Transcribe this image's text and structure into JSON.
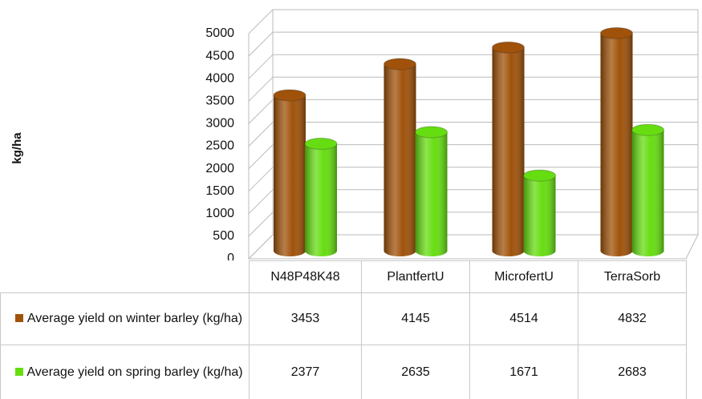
{
  "chart_data": {
    "type": "cylinder-bar",
    "y_label": "kg/ha",
    "categories": [
      "N48P48K48",
      "PlantfertU",
      "MicrofertU",
      "TerraSorb"
    ],
    "series": [
      {
        "name": "Average yield on winter barley (kg/ha)",
        "color": "#a0520a",
        "values": [
          3453,
          4145,
          4514,
          4832
        ]
      },
      {
        "name": "Average yield on spring barley (kg/ha)",
        "color": "#66dd11",
        "values": [
          2377,
          2635,
          1671,
          2683
        ]
      }
    ],
    "ylim": [
      0,
      5000
    ],
    "yticks": [
      0,
      500,
      1000,
      1500,
      2000,
      2500,
      3000,
      3500,
      4000,
      4500,
      5000
    ],
    "grid": true
  }
}
